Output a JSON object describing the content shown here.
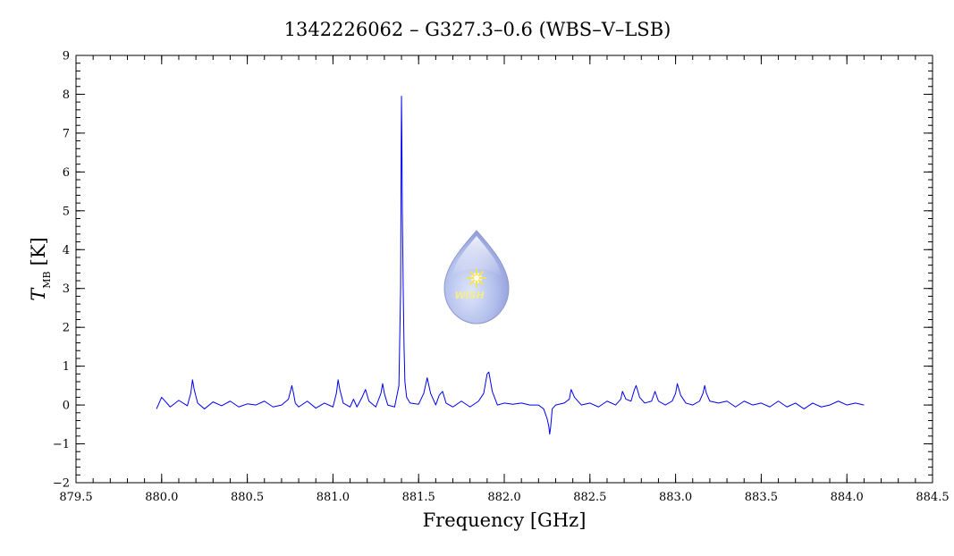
{
  "chart_data": {
    "type": "line",
    "title": "1342226062 – G327.3–0.6 (WBS–V–LSB)",
    "xlabel": "Frequency [GHz]",
    "ylabel_main": "T",
    "ylabel_sub": "MB",
    "ylabel_unit": "[K]",
    "xlim": [
      879.5,
      884.5
    ],
    "ylim": [
      -2,
      9
    ],
    "x_ticks": [
      879.5,
      880.0,
      880.5,
      881.0,
      881.5,
      882.0,
      882.5,
      883.0,
      883.5,
      884.0,
      884.5
    ],
    "x_tick_labels": [
      "879.5",
      "880.0",
      "880.5",
      "881.0",
      "881.5",
      "882.0",
      "882.5",
      "883.0",
      "883.5",
      "884.0",
      "884.5"
    ],
    "y_ticks": [
      -2,
      -1,
      0,
      1,
      2,
      3,
      4,
      5,
      6,
      7,
      8,
      9
    ],
    "y_tick_labels": [
      "−2",
      "−1",
      "0",
      "1",
      "2",
      "3",
      "4",
      "5",
      "6",
      "7",
      "8",
      "9"
    ],
    "x_minor_step": 0.1,
    "y_minor_step": 0.2,
    "grid": false,
    "legend": "none",
    "series_color": "#0000ee",
    "series": [
      {
        "x": [
          879.97,
          880.0,
          880.05,
          880.1,
          880.15,
          880.17,
          880.18,
          880.19,
          880.21,
          880.25,
          880.3,
          880.35,
          880.4,
          880.45,
          880.5,
          880.55,
          880.6,
          880.65,
          880.7,
          880.74,
          880.76,
          880.77,
          880.78,
          880.8,
          880.85,
          880.9,
          880.95,
          881.0,
          881.02,
          881.03,
          881.04,
          881.06,
          881.1,
          881.12,
          881.14,
          881.17,
          881.19,
          881.21,
          881.25,
          881.28,
          881.29,
          881.3,
          881.32,
          881.36,
          881.385,
          881.395,
          881.398,
          881.4,
          881.402,
          881.405,
          881.41,
          881.415,
          881.42,
          881.43,
          881.45,
          881.5,
          881.53,
          881.55,
          881.57,
          881.6,
          881.62,
          881.64,
          881.66,
          881.7,
          881.75,
          881.8,
          881.85,
          881.88,
          881.9,
          881.91,
          881.93,
          881.96,
          882.0,
          882.05,
          882.1,
          882.15,
          882.2,
          882.23,
          882.25,
          882.26,
          882.265,
          882.27,
          882.28,
          882.3,
          882.35,
          882.38,
          882.39,
          882.41,
          882.45,
          882.5,
          882.55,
          882.6,
          882.65,
          882.68,
          882.69,
          882.71,
          882.74,
          882.76,
          882.77,
          882.79,
          882.82,
          882.86,
          882.88,
          882.9,
          882.94,
          882.98,
          883.0,
          883.01,
          883.03,
          883.06,
          883.1,
          883.14,
          883.16,
          883.17,
          883.18,
          883.2,
          883.25,
          883.3,
          883.35,
          883.4,
          883.45,
          883.5,
          883.55,
          883.6,
          883.65,
          883.7,
          883.75,
          883.8,
          883.85,
          883.9,
          883.95,
          884.0,
          884.05,
          884.1
        ],
        "y": [
          -0.1,
          0.2,
          -0.05,
          0.12,
          -0.02,
          0.3,
          0.65,
          0.4,
          0.05,
          -0.1,
          0.08,
          -0.02,
          0.1,
          -0.05,
          0.03,
          0.0,
          0.1,
          -0.05,
          0.0,
          0.15,
          0.5,
          0.3,
          0.05,
          -0.05,
          0.1,
          -0.08,
          0.05,
          -0.05,
          0.3,
          0.65,
          0.4,
          0.05,
          -0.05,
          0.15,
          -0.05,
          0.2,
          0.4,
          0.1,
          -0.05,
          0.3,
          0.55,
          0.3,
          0.0,
          -0.05,
          0.5,
          3.0,
          6.5,
          7.95,
          7.0,
          5.0,
          3.0,
          1.5,
          0.6,
          0.2,
          0.05,
          0.02,
          0.3,
          0.7,
          0.3,
          0.0,
          0.25,
          0.35,
          0.05,
          -0.05,
          0.1,
          -0.05,
          0.1,
          0.3,
          0.8,
          0.85,
          0.35,
          0.0,
          0.05,
          0.02,
          0.05,
          0.0,
          0.0,
          -0.1,
          -0.35,
          -0.55,
          -0.75,
          -0.6,
          -0.1,
          0.0,
          0.05,
          0.15,
          0.4,
          0.2,
          0.0,
          0.05,
          -0.05,
          0.1,
          0.0,
          0.15,
          0.35,
          0.15,
          0.1,
          0.4,
          0.5,
          0.2,
          0.05,
          0.1,
          0.35,
          0.1,
          0.0,
          0.1,
          0.3,
          0.55,
          0.25,
          0.05,
          0.0,
          0.1,
          0.3,
          0.5,
          0.3,
          0.1,
          0.05,
          0.1,
          -0.05,
          0.1,
          0.0,
          0.05,
          -0.05,
          0.1,
          -0.05,
          0.05,
          -0.1,
          0.05,
          -0.05,
          0.0,
          0.1,
          0.0,
          0.05,
          0.0
        ]
      }
    ]
  },
  "logo": {
    "text": "WISH"
  }
}
